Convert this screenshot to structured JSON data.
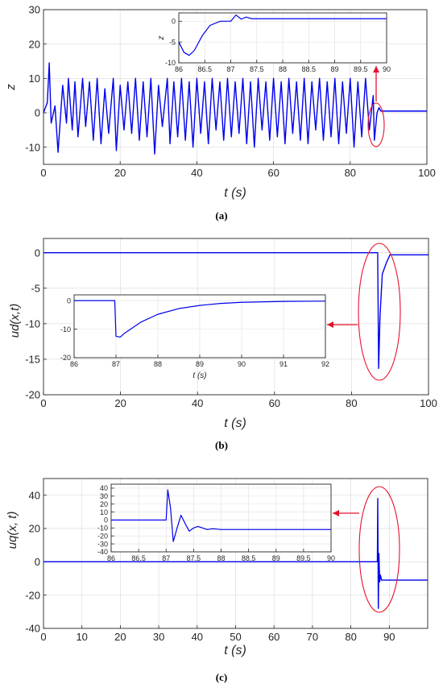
{
  "figure": {
    "captions": [
      "(a)",
      "(b)",
      "(c)"
    ],
    "colors": {
      "line": "#0000ee",
      "annotation": "#e8112d",
      "axis": "#262626",
      "grid": "#dcdcdc",
      "inset_grid": "#e3e3e3"
    }
  },
  "chart_data": [
    {
      "type": "line",
      "panel": "a",
      "xlabel": "t (s)",
      "ylabel": "z",
      "xlim": [
        0,
        100
      ],
      "ylim": [
        -15,
        30
      ],
      "xticks": [
        0,
        20,
        40,
        60,
        80,
        100
      ],
      "yticks": [
        -10,
        0,
        10,
        20,
        30
      ],
      "grid": true,
      "series": [
        {
          "x": [
            0,
            1,
            1.5,
            2,
            3,
            3.8,
            5,
            6,
            6.5,
            7.5,
            8.2,
            9,
            10.2,
            11,
            12,
            13,
            14,
            15,
            16,
            17,
            18.2,
            19,
            20,
            21,
            22,
            23,
            24,
            25,
            26,
            27,
            28,
            29,
            30,
            31,
            32.3,
            33,
            34,
            35,
            36,
            37,
            38,
            39,
            40,
            41,
            42,
            43,
            44,
            45,
            46,
            47,
            48,
            49,
            50,
            51,
            52,
            53,
            54,
            55,
            56,
            57,
            58,
            59,
            60,
            61,
            62,
            63,
            64,
            65,
            66,
            67,
            68,
            69,
            70,
            71,
            72,
            73,
            74,
            75,
            76,
            77,
            78,
            79,
            80,
            81,
            82,
            83,
            84,
            85,
            86,
            86.3,
            87,
            87.5,
            88,
            100
          ],
          "y": [
            0,
            3,
            14.5,
            -3,
            2,
            -11.5,
            8,
            -3,
            10,
            -5,
            9,
            -7,
            10,
            -4,
            9,
            -8,
            10,
            -9,
            7,
            -6,
            10,
            -11,
            8,
            -5,
            9,
            -6,
            10,
            -8,
            9,
            -7,
            10,
            -12,
            8,
            -4,
            10,
            -9,
            9,
            -7,
            10,
            -8,
            9,
            -10,
            10,
            -6,
            9,
            -9,
            10,
            -5,
            9,
            -8,
            10,
            -7,
            9,
            -6,
            10,
            -9,
            9,
            -10,
            10,
            -5,
            9,
            -8,
            10,
            -7,
            9,
            -9,
            10,
            -6,
            9,
            -8,
            10,
            -9,
            9,
            -5,
            10,
            -8,
            9,
            -7,
            10,
            -9,
            9,
            -6,
            10,
            -10,
            9,
            -7,
            10,
            -5,
            5,
            -8,
            0,
            1.5,
            0.5,
            0.5
          ]
        }
      ],
      "inset": {
        "ylabel": "z",
        "xlim": [
          86,
          90
        ],
        "ylim": [
          -10,
          2
        ],
        "xticks": [
          86,
          86.5,
          87,
          87.5,
          88,
          88.5,
          89,
          89.5,
          90
        ],
        "yticks": [
          -10,
          -5,
          0
        ],
        "x": [
          86,
          86.1,
          86.2,
          86.3,
          86.45,
          86.6,
          86.8,
          87,
          87.1,
          87.2,
          87.3,
          87.4,
          87.5,
          90
        ],
        "y": [
          -5,
          -7.5,
          -8.2,
          -7,
          -3.5,
          -1,
          0,
          0,
          1.5,
          0.5,
          1,
          0.6,
          0.6,
          0.6
        ]
      }
    },
    {
      "type": "line",
      "panel": "b",
      "xlabel": "t (s)",
      "ylabel": "ud(x,t)",
      "xlim": [
        0,
        100
      ],
      "ylim": [
        -20,
        2
      ],
      "xticks": [
        0,
        20,
        40,
        60,
        80,
        100
      ],
      "yticks": [
        -20,
        -15,
        -10,
        -5,
        0
      ],
      "grid": true,
      "series": [
        {
          "x": [
            0,
            86.8,
            87.05,
            87.4,
            88,
            89,
            90,
            100
          ],
          "y": [
            0,
            0,
            -16.3,
            -9,
            -3,
            -1.5,
            -0.3,
            -0.3
          ]
        }
      ],
      "inset": {
        "xlabel": "t (s)",
        "xlim": [
          86,
          92
        ],
        "ylim": [
          -20,
          2
        ],
        "xticks": [
          86,
          87,
          88,
          89,
          90,
          91,
          92
        ],
        "yticks": [
          -20,
          -10,
          0
        ],
        "x": [
          86,
          86.97,
          87.0,
          87.1,
          87.2,
          87.4,
          87.6,
          88,
          88.5,
          89,
          89.5,
          90,
          91,
          92
        ],
        "y": [
          0,
          0,
          -12.5,
          -12.8,
          -11.5,
          -9.5,
          -7.5,
          -4.8,
          -2.8,
          -1.7,
          -1.0,
          -0.6,
          -0.3,
          -0.2
        ]
      }
    },
    {
      "type": "line",
      "panel": "c",
      "xlabel": "t (s)",
      "ylabel": "uq(x, t)",
      "xlim": [
        0,
        100
      ],
      "ylim": [
        -40,
        50
      ],
      "xticks": [
        0,
        10,
        20,
        30,
        40,
        50,
        60,
        70,
        80,
        90
      ],
      "yticks": [
        -40,
        -20,
        0,
        20,
        40
      ],
      "grid": true,
      "series": [
        {
          "x": [
            0,
            86.9,
            87.0,
            87.15,
            87.3,
            87.5,
            87.7,
            88,
            89,
            100
          ],
          "y": [
            0,
            0,
            38,
            -28,
            5,
            -12,
            -8,
            -11,
            -11,
            -11
          ]
        }
      ],
      "inset": {
        "xlim": [
          86,
          90
        ],
        "ylim": [
          -40,
          45
        ],
        "xticks": [
          86,
          86.5,
          87,
          87.5,
          88,
          88.5,
          89,
          89.5,
          90
        ],
        "yticks": [
          -40,
          -30,
          -20,
          -10,
          0,
          10,
          20,
          30,
          40
        ],
        "x": [
          86,
          87.0,
          87.03,
          87.08,
          87.13,
          87.2,
          87.27,
          87.35,
          87.42,
          87.5,
          87.58,
          87.66,
          87.75,
          87.85,
          88,
          90
        ],
        "y": [
          0,
          0,
          38,
          15,
          -27,
          -10,
          6,
          -5,
          -14,
          -10,
          -8,
          -10,
          -12,
          -11,
          -12,
          -12
        ]
      }
    }
  ]
}
